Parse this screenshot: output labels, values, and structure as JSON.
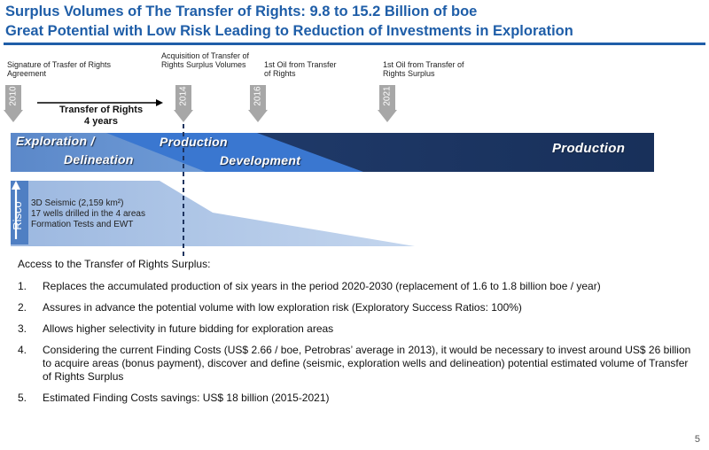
{
  "title": {
    "line1": "Surplus Volumes of The Transfer of Rights: 9.8 to 15.2 Billion of boe",
    "line2": "Great Potential with Low Risk Leading to Reduction of Investments in Exploration"
  },
  "timeline": {
    "milestones": [
      {
        "year": "2010",
        "label_lines": [
          "Signature of Trasfer of Rights",
          "Agreement"
        ]
      },
      {
        "year": "2014",
        "label_lines": [
          "Acquisition of Transfer of",
          "Rights Surplus Volumes"
        ]
      },
      {
        "year": "2016",
        "label_lines": [
          "1st Oil from Transfer",
          "of Rights"
        ]
      },
      {
        "year": "2021",
        "label_lines": [
          "1st Oil from Transfer of",
          "Rights Surplus"
        ]
      }
    ],
    "transfer_lines": [
      "Transfer of Rights",
      "4  years"
    ],
    "phases": {
      "exploration_line1": "Exploration /",
      "exploration_line2": "Delineation",
      "production_small": "Production",
      "development": "Development",
      "production_main": "Production"
    },
    "risk_label": "Risco",
    "exploration_info": [
      "3D Seismic (2,159 km²)",
      "17 wells drilled in the 4 areas",
      "Formation Tests and EWT"
    ],
    "colors": {
      "light_blue": "#5f8fd0",
      "mid_blue": "#3a78d2",
      "dark_blue": "#1f3560",
      "gray": "#a7a7a7",
      "title_blue": "#1f5ea8"
    }
  },
  "content": {
    "intro": "Access to the Transfer of Rights Surplus:",
    "items": [
      {
        "num": "1.",
        "text": "Replaces the accumulated production of six years in the period 2020-2030 (replacement of 1.6 to 1.8 billion boe / year)"
      },
      {
        "num": "2.",
        "text": "Assures in advance the potential volume with low exploration risk (Exploratory Success Ratios: 100%)"
      },
      {
        "num": "3.",
        "text": "Allows higher selectivity in future bidding for exploration areas"
      },
      {
        "num": "4.",
        "text": "Considering the current Finding Costs (US$ 2.66 / boe, Petrobras’ average in 2013), it would be necessary to invest around US$ 26 billion to acquire areas (bonus payment), discover and define (seismic, exploration wells and delineation) potential estimated volume of Transfer of Rights Surplus"
      },
      {
        "num": "5.",
        "text": "Estimated Finding Costs savings: US$ 18 billion (2015-2021)"
      }
    ]
  },
  "page_number": "5"
}
